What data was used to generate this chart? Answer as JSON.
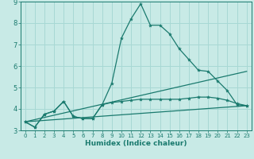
{
  "title": "",
  "xlabel": "Humidex (Indice chaleur)",
  "ylabel": "",
  "background_color": "#c8eae6",
  "grid_color": "#a8d8d4",
  "line_color": "#1a7a6e",
  "xlim": [
    -0.5,
    23.5
  ],
  "ylim": [
    3,
    9
  ],
  "xticks": [
    0,
    1,
    2,
    3,
    4,
    5,
    6,
    7,
    8,
    9,
    10,
    11,
    12,
    13,
    14,
    15,
    16,
    17,
    18,
    19,
    20,
    21,
    22,
    23
  ],
  "yticks": [
    3,
    4,
    5,
    6,
    7,
    8,
    9
  ],
  "series1_x": [
    0,
    1,
    2,
    3,
    4,
    5,
    6,
    7,
    8,
    9,
    10,
    11,
    12,
    13,
    14,
    15,
    16,
    17,
    18,
    19,
    20,
    21,
    22,
    23
  ],
  "series1_y": [
    3.4,
    3.15,
    3.75,
    3.9,
    4.35,
    3.65,
    3.55,
    3.55,
    4.2,
    5.2,
    7.3,
    8.2,
    8.9,
    7.9,
    7.9,
    7.5,
    6.8,
    6.3,
    5.8,
    5.75,
    5.3,
    4.85,
    4.2,
    4.15
  ],
  "series2_x": [
    0,
    1,
    2,
    3,
    4,
    5,
    6,
    7,
    8,
    9,
    10,
    11,
    12,
    13,
    14,
    15,
    16,
    17,
    18,
    19,
    20,
    21,
    22,
    23
  ],
  "series2_y": [
    3.4,
    3.15,
    3.75,
    3.9,
    4.35,
    3.65,
    3.55,
    3.55,
    4.2,
    4.3,
    4.35,
    4.4,
    4.45,
    4.45,
    4.45,
    4.45,
    4.45,
    4.5,
    4.55,
    4.55,
    4.5,
    4.4,
    4.25,
    4.15
  ],
  "series3_x": [
    0,
    23
  ],
  "series3_y": [
    3.4,
    5.75
  ],
  "series4_x": [
    0,
    23
  ],
  "series4_y": [
    3.4,
    4.15
  ]
}
